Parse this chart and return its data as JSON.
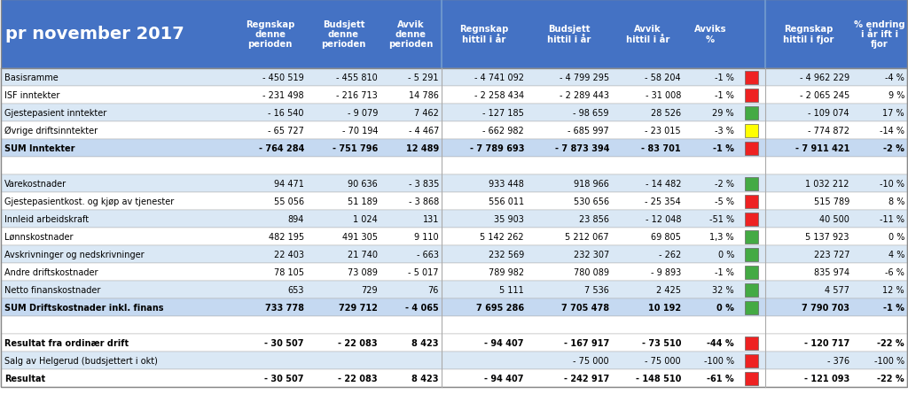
{
  "title": "pr november 2017",
  "col_headers": [
    "Regnskap\ndenne\nperioden",
    "Budsjett\ndenne\nperioden",
    "Avvik\ndenne\nperioden",
    "Regnskap\nhittil i år",
    "Budsjett\nhittil i år",
    "Avvik\nhittil i år",
    "Avviks\n%",
    "",
    "Regnskap\nhittil i fjor",
    "% endring\ni år ift i\nfjor"
  ],
  "rows": [
    {
      "label": "Basisramme",
      "vals": [
        "- 450 519",
        "- 455 810",
        "- 5 291",
        "- 4 741 092",
        "- 4 799 295",
        "- 58 204",
        "-1 %",
        "red",
        "- 4 962 229",
        "-4 %"
      ],
      "bold": false,
      "bg": "light"
    },
    {
      "label": "ISF inntekter",
      "vals": [
        "- 231 498",
        "- 216 713",
        "14 786",
        "- 2 258 434",
        "- 2 289 443",
        "- 31 008",
        "-1 %",
        "red",
        "- 2 065 245",
        "9 %"
      ],
      "bold": false,
      "bg": "white"
    },
    {
      "label": "Gjestepasient inntekter",
      "vals": [
        "- 16 540",
        "- 9 079",
        "7 462",
        "- 127 185",
        "- 98 659",
        "28 526",
        "29 %",
        "green",
        "- 109 074",
        "17 %"
      ],
      "bold": false,
      "bg": "light"
    },
    {
      "label": "Øvrige driftsinntekter",
      "vals": [
        "- 65 727",
        "- 70 194",
        "- 4 467",
        "- 662 982",
        "- 685 997",
        "- 23 015",
        "-3 %",
        "yellow",
        "- 774 872",
        "-14 %"
      ],
      "bold": false,
      "bg": "white"
    },
    {
      "label": "SUM Inntekter",
      "vals": [
        "- 764 284",
        "- 751 796",
        "12 489",
        "- 7 789 693",
        "- 7 873 394",
        "- 83 701",
        "-1 %",
        "red",
        "- 7 911 421",
        "-2 %"
      ],
      "bold": true,
      "bg": "sum"
    },
    {
      "label": "",
      "vals": [
        "",
        "",
        "",
        "",
        "",
        "",
        "",
        "",
        "",
        ""
      ],
      "bold": false,
      "bg": "white"
    },
    {
      "label": "Varekostnader",
      "vals": [
        "94 471",
        "90 636",
        "- 3 835",
        "933 448",
        "918 966",
        "- 14 482",
        "-2 %",
        "green",
        "1 032 212",
        "-10 %"
      ],
      "bold": false,
      "bg": "light"
    },
    {
      "label": "Gjestepasientkost. og kjøp av tjenester",
      "vals": [
        "55 056",
        "51 189",
        "- 3 868",
        "556 011",
        "530 656",
        "- 25 354",
        "-5 %",
        "red",
        "515 789",
        "8 %"
      ],
      "bold": false,
      "bg": "white"
    },
    {
      "label": "Innleid arbeidskraft",
      "vals": [
        "894",
        "1 024",
        "131",
        "35 903",
        "23 856",
        "- 12 048",
        "-51 %",
        "red",
        "40 500",
        "-11 %"
      ],
      "bold": false,
      "bg": "light"
    },
    {
      "label": "Lønnskostnader",
      "vals": [
        "482 195",
        "491 305",
        "9 110",
        "5 142 262",
        "5 212 067",
        "69 805",
        "1,3 %",
        "green",
        "5 137 923",
        "0 %"
      ],
      "bold": false,
      "bg": "white"
    },
    {
      "label": "Avskrivninger og nedskrivninger",
      "vals": [
        "22 403",
        "21 740",
        "- 663",
        "232 569",
        "232 307",
        "- 262",
        "0 %",
        "green",
        "223 727",
        "4 %"
      ],
      "bold": false,
      "bg": "light"
    },
    {
      "label": "Andre driftskostnader",
      "vals": [
        "78 105",
        "73 089",
        "- 5 017",
        "789 982",
        "780 089",
        "- 9 893",
        "-1 %",
        "green",
        "835 974",
        "-6 %"
      ],
      "bold": false,
      "bg": "white"
    },
    {
      "label": "Netto finanskostnader",
      "vals": [
        "653",
        "729",
        "76",
        "5 111",
        "7 536",
        "2 425",
        "32 %",
        "green",
        "4 577",
        "12 %"
      ],
      "bold": false,
      "bg": "light"
    },
    {
      "label": "SUM Driftskostnader inkl. finans",
      "vals": [
        "733 778",
        "729 712",
        "- 4 065",
        "7 695 286",
        "7 705 478",
        "10 192",
        "0 %",
        "green",
        "7 790 703",
        "-1 %"
      ],
      "bold": true,
      "bg": "sum"
    },
    {
      "label": "",
      "vals": [
        "",
        "",
        "",
        "",
        "",
        "",
        "",
        "",
        "",
        ""
      ],
      "bold": false,
      "bg": "white"
    },
    {
      "label": "Resultat fra ordinær drift",
      "vals": [
        "- 30 507",
        "- 22 083",
        "8 423",
        "- 94 407",
        "- 167 917",
        "- 73 510",
        "-44 %",
        "red",
        "- 120 717",
        "-22 %"
      ],
      "bold": true,
      "bg": "white"
    },
    {
      "label": "Salg av Helgerud (budsjettert i okt)",
      "vals": [
        "",
        "",
        "",
        "",
        "- 75 000",
        "- 75 000",
        "-100 %",
        "red",
        "- 376",
        "-100 %"
      ],
      "bold": false,
      "bg": "light"
    },
    {
      "label": "Resultat",
      "vals": [
        "- 30 507",
        "- 22 083",
        "8 423",
        "- 94 407",
        "- 242 917",
        "- 148 510",
        "-61 %",
        "red",
        "- 121 093",
        "-22 %"
      ],
      "bold": true,
      "bg": "white"
    }
  ],
  "HDR_BG": "#4472C4",
  "LIGHT_BG": "#DAE8F5",
  "WHITE_BG": "#FFFFFF",
  "SUM_BG": "#C5D9F1",
  "RED_IND": "#EE2222",
  "GREEN_IND": "#44AA44",
  "YELLOW_IND": "#FFFF00"
}
